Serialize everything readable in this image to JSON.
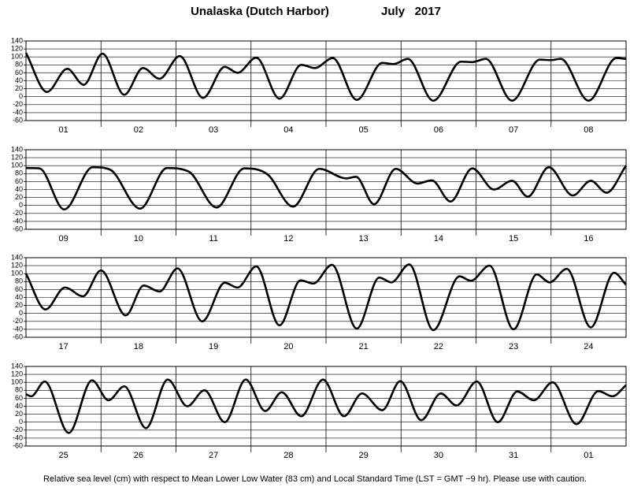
{
  "header": {
    "title": "Unalaska (Dutch Harbor)",
    "date": "July   2017"
  },
  "footnote": "Relative sea level (cm) with respect to Mean Lower Low Water (83 cm) and Local Standard Time (LST = GMT −9 hr). Please use with caution.",
  "chart_data": [
    {
      "type": "line",
      "categories": [
        "01",
        "02",
        "03",
        "04",
        "05",
        "06",
        "07",
        "08"
      ],
      "xlim": [
        0,
        8
      ],
      "ylim": [
        -60,
        140
      ],
      "yticks": [
        -60,
        -40,
        -20,
        0,
        20,
        40,
        60,
        80,
        100,
        120,
        140
      ],
      "grid": true,
      "x": [
        0,
        0.28,
        0.55,
        0.77,
        1.02,
        1.31,
        1.56,
        1.78,
        2.05,
        2.36,
        2.65,
        2.82,
        3.07,
        3.38,
        3.67,
        3.85,
        4.09,
        4.41,
        4.75,
        4.9,
        5.09,
        5.43,
        5.8,
        5.95,
        6.13,
        6.48,
        6.85,
        7.0,
        7.13,
        7.5,
        7.87,
        8.0
      ],
      "series": [
        {
          "color": "#000000",
          "values": [
            110,
            12,
            70,
            30,
            108,
            5,
            72,
            45,
            102,
            -3,
            75,
            60,
            98,
            -5,
            80,
            72,
            97,
            -8,
            85,
            82,
            95,
            -10,
            88,
            87,
            95,
            -10,
            93,
            92,
            95,
            -10,
            97,
            95
          ]
        }
      ]
    },
    {
      "type": "line",
      "categories": [
        "09",
        "10",
        "11",
        "12",
        "13",
        "14",
        "15",
        "16"
      ],
      "xlim": [
        0,
        8
      ],
      "ylim": [
        -60,
        140
      ],
      "yticks": [
        -60,
        -40,
        -20,
        0,
        20,
        40,
        60,
        80,
        100,
        120,
        140
      ],
      "grid": true,
      "x": [
        0,
        0.18,
        0.51,
        0.89,
        1.12,
        1.52,
        1.88,
        2.17,
        2.54,
        2.91,
        3.22,
        3.56,
        3.91,
        4.27,
        4.4,
        4.64,
        4.93,
        5.22,
        5.41,
        5.66,
        5.95,
        6.24,
        6.48,
        6.69,
        6.97,
        7.29,
        7.53,
        7.74,
        8.0
      ],
      "series": [
        {
          "color": "#000000",
          "values": [
            94,
            93,
            -10,
            96,
            90,
            -8,
            94,
            85,
            -5,
            93,
            78,
            -3,
            92,
            68,
            72,
            3,
            92,
            55,
            63,
            10,
            93,
            40,
            62,
            22,
            96,
            25,
            62,
            32,
            100
          ]
        }
      ]
    },
    {
      "type": "line",
      "categories": [
        "17",
        "18",
        "19",
        "20",
        "21",
        "22",
        "23",
        "24"
      ],
      "xlim": [
        0,
        8
      ],
      "ylim": [
        -60,
        140
      ],
      "yticks": [
        -60,
        -40,
        -20,
        0,
        20,
        40,
        60,
        80,
        100,
        120,
        140
      ],
      "grid": true,
      "x": [
        0,
        0.26,
        0.52,
        0.76,
        1.0,
        1.33,
        1.57,
        1.78,
        2.02,
        2.35,
        2.65,
        2.82,
        3.07,
        3.38,
        3.66,
        3.83,
        4.08,
        4.41,
        4.71,
        4.87,
        5.11,
        5.43,
        5.78,
        5.93,
        6.18,
        6.5,
        6.81,
        6.98,
        7.21,
        7.53,
        7.84,
        8.0
      ],
      "series": [
        {
          "color": "#000000",
          "values": [
            100,
            10,
            65,
            43,
            108,
            -5,
            70,
            55,
            113,
            -20,
            77,
            65,
            118,
            -30,
            83,
            75,
            122,
            -38,
            90,
            78,
            123,
            -42,
            93,
            82,
            120,
            -40,
            98,
            78,
            112,
            -35,
            102,
            72
          ]
        }
      ]
    },
    {
      "type": "line",
      "categories": [
        "25",
        "26",
        "27",
        "28",
        "29",
        "30",
        "31",
        "01"
      ],
      "xlim": [
        0,
        8
      ],
      "ylim": [
        -60,
        140
      ],
      "yticks": [
        -60,
        -40,
        -20,
        0,
        20,
        40,
        60,
        80,
        100,
        120,
        140
      ],
      "grid": true,
      "x": [
        0,
        0.07,
        0.25,
        0.57,
        0.88,
        1.1,
        1.31,
        1.6,
        1.89,
        2.15,
        2.38,
        2.65,
        2.93,
        3.19,
        3.41,
        3.67,
        3.96,
        4.24,
        4.48,
        4.75,
        4.99,
        5.27,
        5.53,
        5.74,
        6.01,
        6.29,
        6.55,
        6.77,
        7.02,
        7.34,
        7.63,
        7.82,
        8.0
      ],
      "series": [
        {
          "color": "#000000",
          "values": [
            70,
            65,
            102,
            -27,
            105,
            55,
            90,
            -15,
            107,
            40,
            80,
            0,
            107,
            28,
            75,
            15,
            107,
            15,
            72,
            30,
            103,
            5,
            72,
            42,
            102,
            0,
            77,
            55,
            100,
            -5,
            78,
            65,
            93
          ]
        }
      ]
    }
  ]
}
